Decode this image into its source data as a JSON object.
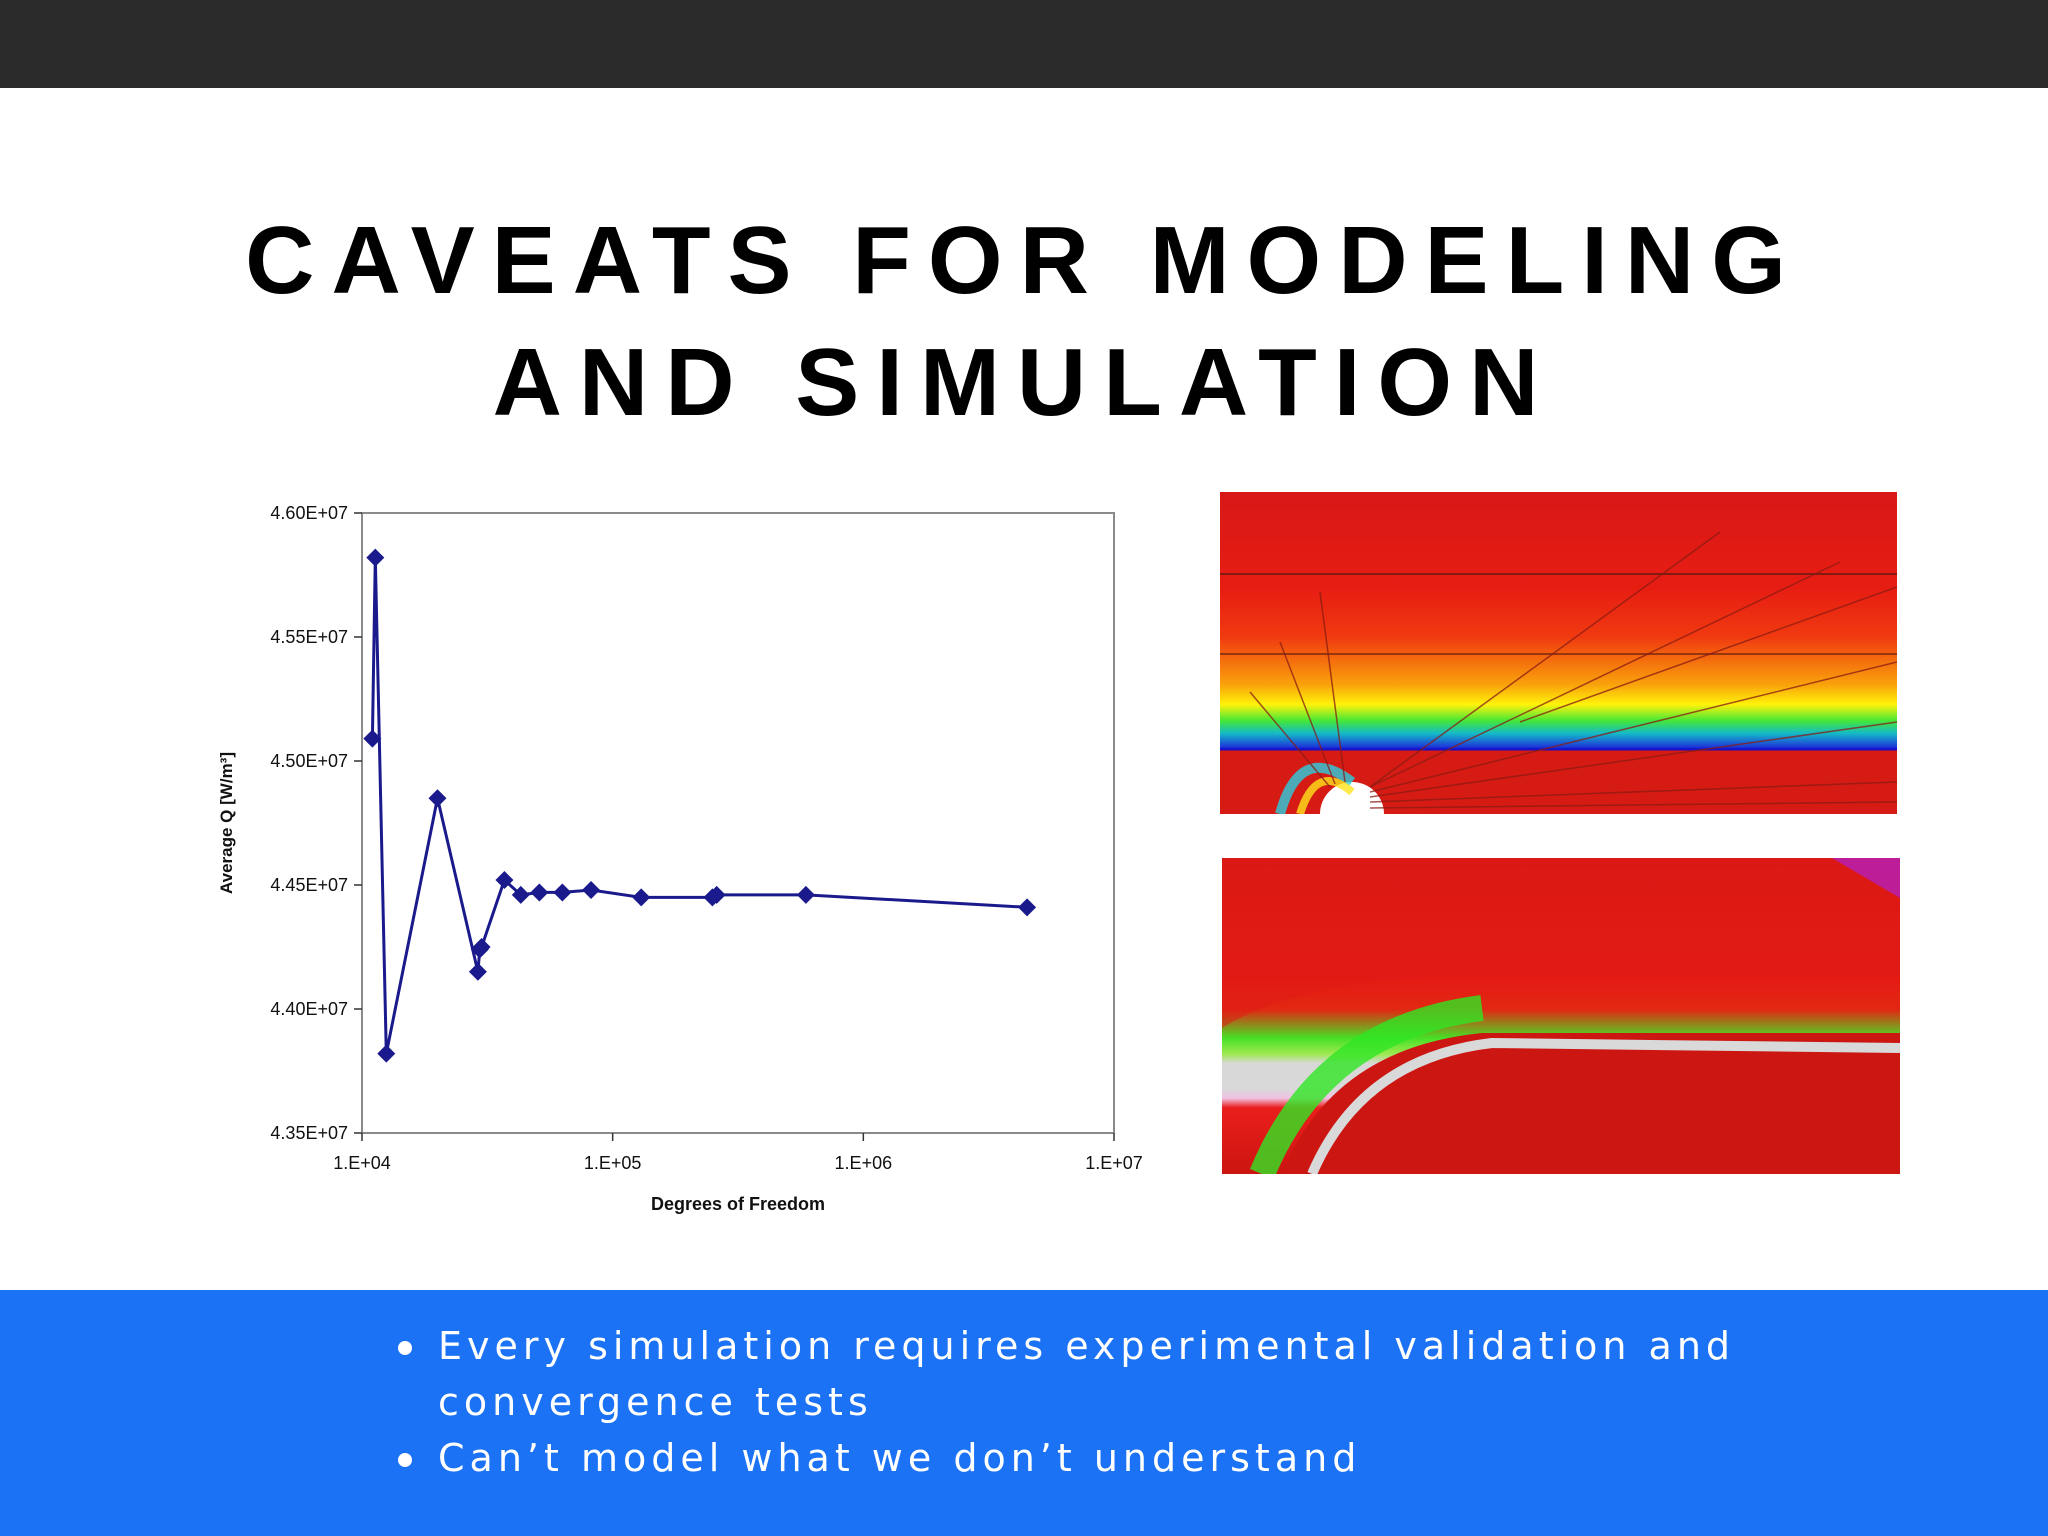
{
  "slide": {
    "title_line1": "CAVEATS FOR MODELING",
    "title_line2": "AND SIMULATION",
    "bullets": [
      "Every simulation requires experimental validation and convergence tests",
      "Can’t model what we don’t understand"
    ],
    "colors": {
      "top_bar": "#2b2b2b",
      "bottom_band": "#1b72f5",
      "series": "#1a1a8c"
    }
  },
  "chart_data": {
    "type": "scatter",
    "xscale": "log",
    "xlabel": "Degrees of Freedom",
    "ylabel": "Average Q [W/m³]",
    "xlim": [
      10000,
      10000000
    ],
    "ylim": [
      43500000,
      46000000
    ],
    "x_tick_labels": [
      "1.E+04",
      "1.E+05",
      "1.E+06",
      "1.E+07"
    ],
    "y_tick_labels": [
      "4.35E+07",
      "4.40E+07",
      "4.45E+07",
      "4.50E+07",
      "4.55E+07",
      "4.60E+07"
    ],
    "grid": false,
    "series": [
      {
        "marker": "diamond",
        "line": true,
        "x": [
          11000,
          11300,
          12500,
          20000,
          29000,
          29500,
          30000,
          37000,
          43000,
          51000,
          63000,
          82000,
          130000,
          250000,
          260000,
          590000,
          4500000
        ],
        "y": [
          45090000,
          45820000,
          43820000,
          44850000,
          44150000,
          44240000,
          44250000,
          44520000,
          44460000,
          44470000,
          44470000,
          44480000,
          44450000,
          44450000,
          44460000,
          44460000,
          44410000
        ]
      }
    ]
  }
}
